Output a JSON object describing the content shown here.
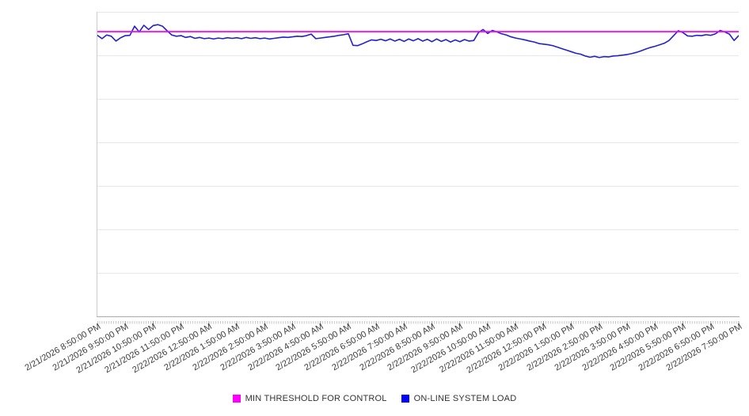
{
  "page": {
    "background": "#ffffff"
  },
  "legend": {
    "items": [
      {
        "label": "MIN THRESHOLD FOR CONTROL",
        "color": "#ff00ff"
      },
      {
        "label": "ON-LINE SYSTEM LOAD",
        "color": "#0000ff"
      }
    ]
  },
  "colors": {
    "gridline": "#e7e7e7",
    "axis_line_y": "#cccccc",
    "axis_line_x": "#ababab",
    "minor_tick": "#c8c8c8",
    "major_tick": "#9a9a9a",
    "tick_label_text": "#3c3c3c",
    "threshold_line": "#ff00ff",
    "load_line": "#2222cc"
  },
  "chart_data": {
    "type": "line",
    "title": "",
    "grid": "horizontal",
    "legend_position": "bottom-center",
    "x_axis": {
      "start": "2/21/2026 8:50:00 PM",
      "end": "2/22/2026 7:50:00 PM",
      "major_tick_interval": "1 hour",
      "minor_tick_interval_minutes": 5,
      "label_rotation_deg": -30,
      "tick_labels": [
        "2/21/2026 8:50:00 PM",
        "2/21/2026 9:50:00 PM",
        "2/21/2026 10:50:00 PM",
        "2/21/2026 11:50:00 PM",
        "2/22/2026 12:50:00 AM",
        "2/22/2026 1:50:00 AM",
        "2/22/2026 2:50:00 AM",
        "2/22/2026 3:50:00 AM",
        "2/22/2026 4:50:00 AM",
        "2/22/2026 5:50:00 AM",
        "2/22/2026 6:50:00 AM",
        "2/22/2026 7:50:00 AM",
        "2/22/2026 8:50:00 AM",
        "2/22/2026 9:50:00 AM",
        "2/22/2026 10:50:00 AM",
        "2/22/2026 11:50:00 AM",
        "2/22/2026 12:50:00 PM",
        "2/22/2026 1:50:00 PM",
        "2/22/2026 2:50:00 PM",
        "2/22/2026 3:50:00 PM",
        "2/22/2026 4:50:00 PM",
        "2/22/2026 5:50:00 PM",
        "2/22/2026 6:50:00 PM",
        "2/22/2026 7:50:00 PM"
      ]
    },
    "y_axis": {
      "tick_labels_visible": false,
      "units": "percent of plot scale (no y labels shown in chart)",
      "ylim": [
        0,
        100
      ],
      "gridline_divisions": 7
    },
    "series": [
      {
        "name": "MIN THRESHOLD FOR CONTROL",
        "color": "#ff00ff",
        "style": "constant-horizontal-line",
        "value": 93.5
      },
      {
        "name": "ON-LINE SYSTEM LOAD",
        "color": "#2222cc",
        "style": "line",
        "interval_minutes": 10,
        "values": [
          92.3,
          91.2,
          92.4,
          92.0,
          90.4,
          91.5,
          92.2,
          92.3,
          95.3,
          93.4,
          95.6,
          94.2,
          95.5,
          95.8,
          95.3,
          93.8,
          92.4,
          92.0,
          92.2,
          91.6,
          91.9,
          91.3,
          91.6,
          91.2,
          91.4,
          91.1,
          91.4,
          91.2,
          91.5,
          91.3,
          91.5,
          91.2,
          91.6,
          91.3,
          91.5,
          91.2,
          91.4,
          91.1,
          91.3,
          91.5,
          91.7,
          91.6,
          91.8,
          92.0,
          91.9,
          92.2,
          92.7,
          91.2,
          91.4,
          91.6,
          91.8,
          92.0,
          92.3,
          92.5,
          92.8,
          89.0,
          88.9,
          89.5,
          90.2,
          90.8,
          90.6,
          91.0,
          90.5,
          91.1,
          90.4,
          91.0,
          90.3,
          91.1,
          90.5,
          91.2,
          90.4,
          91.0,
          90.2,
          91.1,
          90.3,
          90.9,
          90.1,
          90.8,
          90.2,
          90.9,
          90.4,
          90.6,
          93.2,
          94.2,
          92.9,
          93.9,
          93.4,
          92.8,
          92.4,
          91.8,
          91.4,
          91.1,
          90.8,
          90.4,
          90.1,
          89.6,
          89.4,
          89.2,
          88.9,
          88.4,
          87.9,
          87.4,
          86.9,
          86.4,
          86.1,
          85.5,
          85.1,
          85.4,
          85.0,
          85.3,
          85.2,
          85.5,
          85.6,
          85.8,
          86.0,
          86.3,
          86.7,
          87.2,
          87.8,
          88.3,
          88.7,
          89.2,
          89.7,
          90.6,
          92.2,
          93.8,
          93.2,
          92.1,
          92.0,
          92.3,
          92.2,
          92.5,
          92.3,
          92.8,
          93.9,
          93.4,
          92.7,
          90.6,
          92.2
        ]
      }
    ]
  }
}
